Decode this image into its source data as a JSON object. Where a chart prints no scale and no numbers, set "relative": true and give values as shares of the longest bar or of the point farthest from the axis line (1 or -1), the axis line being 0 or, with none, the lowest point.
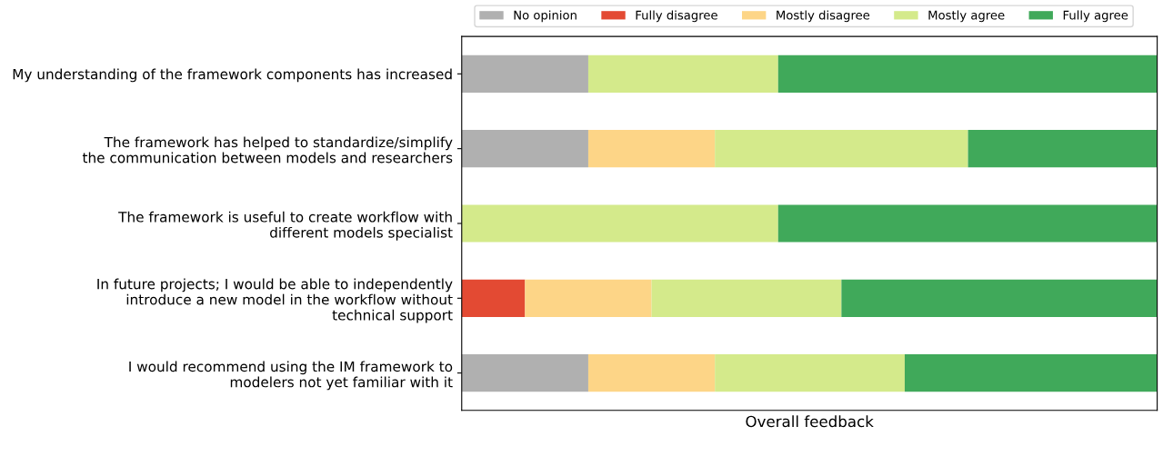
{
  "chart_data": {
    "type": "bar",
    "orientation": "horizontal",
    "stacked": true,
    "relative": true,
    "xlabel": "Overall feedback",
    "legend": "top",
    "categories": [
      "My understanding of the framework components has increased",
      "The framework has helped to standardize/simplify\nthe communication between models and researchers",
      "The framework is useful to create workflow with\ndifferent models specialist",
      "In future projects; I would be able to independently\nintroduce a new model in the workflow without\ntechnical support",
      "I would recommend using the IM framework to\nmodelers not yet familiar with it"
    ],
    "series": [
      {
        "name": "No opinion",
        "color": "#b0b0b0",
        "values": [
          0.182,
          0.182,
          null,
          null,
          0.182
        ]
      },
      {
        "name": "Fully disagree",
        "color": "#e34a33",
        "values": [
          null,
          null,
          null,
          0.091,
          null
        ]
      },
      {
        "name": "Mostly disagree",
        "color": "#fdd587",
        "values": [
          null,
          0.182,
          null,
          0.182,
          0.182
        ]
      },
      {
        "name": "Mostly agree",
        "color": "#d4ea8b",
        "values": [
          0.273,
          0.364,
          0.455,
          0.273,
          0.273
        ]
      },
      {
        "name": "Fully agree",
        "color": "#40a95a",
        "values": [
          0.545,
          0.272,
          0.545,
          0.454,
          0.363
        ]
      }
    ]
  }
}
